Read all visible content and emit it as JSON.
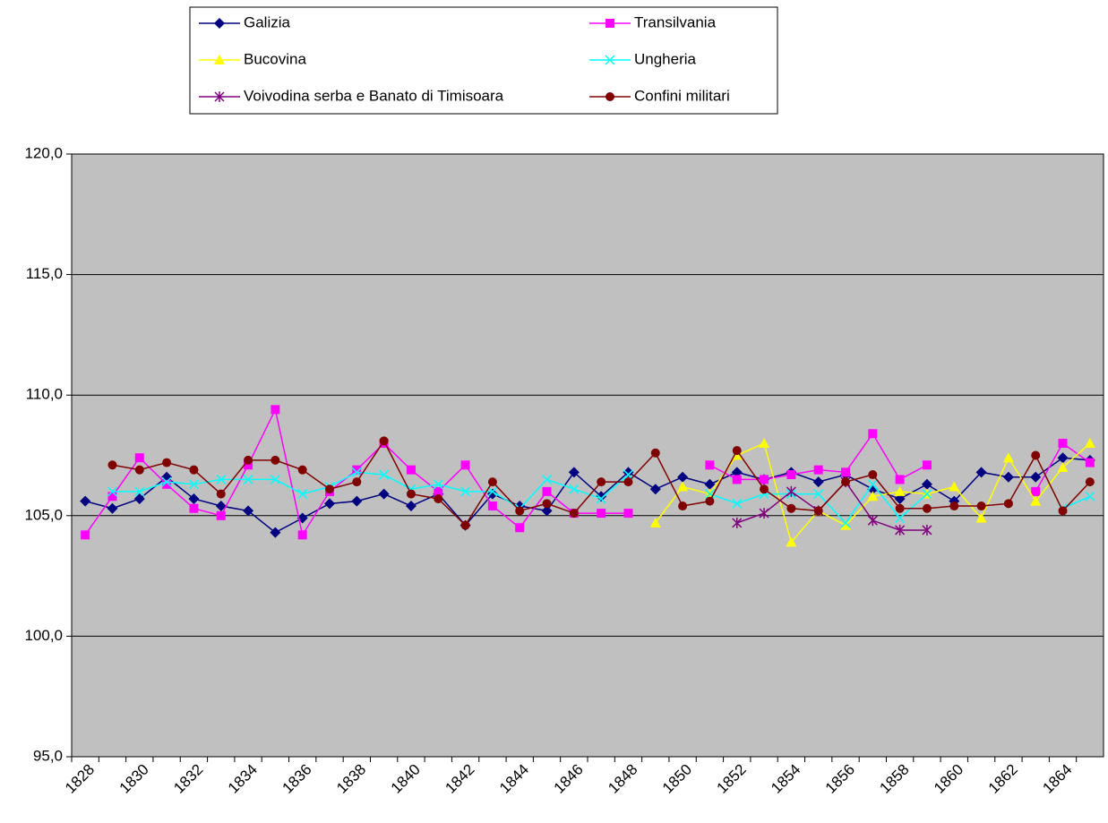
{
  "chart_data": {
    "type": "line",
    "categories": [
      "1828",
      null,
      "1830",
      null,
      "1832",
      null,
      "1834",
      null,
      "1836",
      null,
      "1838",
      null,
      "1840",
      null,
      "1842",
      null,
      "1844",
      null,
      "1846",
      null,
      "1848",
      null,
      "1850",
      null,
      "1852",
      null,
      "1854",
      null,
      "1856",
      null,
      "1858",
      null,
      "1860",
      null,
      "1862",
      null,
      "1864",
      null
    ],
    "ylim": [
      95,
      120
    ],
    "yticks": [
      {
        "value": 95,
        "label": "95,0"
      },
      {
        "value": 100,
        "label": "100,0"
      },
      {
        "value": 105,
        "label": "105,0"
      },
      {
        "value": 110,
        "label": "110,0"
      },
      {
        "value": 115,
        "label": "115,0"
      },
      {
        "value": 120,
        "label": "120,0"
      }
    ],
    "grid": true,
    "legend": "top",
    "series": [
      {
        "name": "Galizia",
        "color": "#000080",
        "marker": "diamond",
        "values": [
          105.6,
          105.3,
          105.7,
          106.6,
          105.7,
          105.4,
          105.2,
          104.3,
          104.9,
          105.5,
          105.6,
          105.9,
          105.4,
          105.9,
          104.6,
          105.9,
          105.4,
          105.2,
          106.8,
          105.8,
          106.8,
          106.1,
          106.6,
          106.3,
          106.8,
          106.5,
          106.8,
          106.4,
          106.7,
          106.1,
          105.7,
          106.3,
          105.6,
          106.8,
          106.6,
          106.6,
          107.4,
          107.3
        ]
      },
      {
        "name": "Transilvania",
        "color": "#ff00ff",
        "marker": "square",
        "values": [
          104.2,
          105.8,
          107.4,
          106.3,
          105.3,
          105.0,
          107.1,
          109.4,
          104.2,
          106.0,
          106.9,
          108.0,
          106.9,
          106.0,
          107.1,
          105.4,
          104.5,
          106.0,
          105.1,
          105.1,
          105.1,
          null,
          null,
          107.1,
          106.5,
          106.5,
          106.7,
          106.9,
          106.8,
          108.4,
          106.5,
          107.1,
          null,
          null,
          null,
          106.0,
          108.0,
          107.2
        ]
      },
      {
        "name": "Bucovina",
        "color": "#ffff00",
        "marker": "triangle",
        "values": [
          null,
          null,
          null,
          null,
          null,
          null,
          null,
          null,
          null,
          null,
          null,
          null,
          null,
          null,
          null,
          null,
          null,
          null,
          null,
          null,
          null,
          104.7,
          106.2,
          105.9,
          107.5,
          108.0,
          103.9,
          105.2,
          104.6,
          105.8,
          106.0,
          105.9,
          106.2,
          104.9,
          107.4,
          105.6,
          107.0,
          108.0
        ]
      },
      {
        "name": "Ungheria",
        "color": "#00ffff",
        "marker": "x",
        "values": [
          null,
          106.0,
          106.0,
          106.4,
          106.3,
          106.5,
          106.5,
          106.5,
          105.9,
          106.2,
          106.8,
          106.7,
          106.1,
          106.3,
          106.0,
          106.0,
          105.3,
          106.5,
          106.1,
          105.7,
          106.7,
          null,
          null,
          105.9,
          105.5,
          105.9,
          105.9,
          105.9,
          104.7,
          106.3,
          104.9,
          105.9,
          null,
          null,
          null,
          null,
          105.3,
          105.8
        ]
      },
      {
        "name": "Voivodina serba e Banato di Timisoara",
        "color": "#800080",
        "marker": "star",
        "values": [
          null,
          null,
          null,
          null,
          null,
          null,
          null,
          null,
          null,
          null,
          null,
          null,
          null,
          null,
          null,
          null,
          null,
          null,
          null,
          null,
          null,
          null,
          null,
          null,
          104.7,
          105.1,
          106.0,
          105.2,
          106.4,
          104.8,
          104.4,
          104.4,
          null,
          null,
          null,
          null,
          null,
          null
        ]
      },
      {
        "name": "Confini militari",
        "color": "#800000",
        "marker": "circle",
        "values": [
          null,
          107.1,
          106.9,
          107.2,
          106.9,
          105.9,
          107.3,
          107.3,
          106.9,
          106.1,
          106.4,
          108.1,
          105.9,
          105.7,
          104.6,
          106.4,
          105.2,
          105.5,
          105.1,
          106.4,
          106.4,
          107.6,
          105.4,
          105.6,
          107.7,
          106.1,
          105.3,
          105.2,
          106.4,
          106.7,
          105.3,
          105.3,
          105.4,
          105.4,
          105.5,
          107.5,
          105.2,
          106.4
        ]
      }
    ]
  }
}
